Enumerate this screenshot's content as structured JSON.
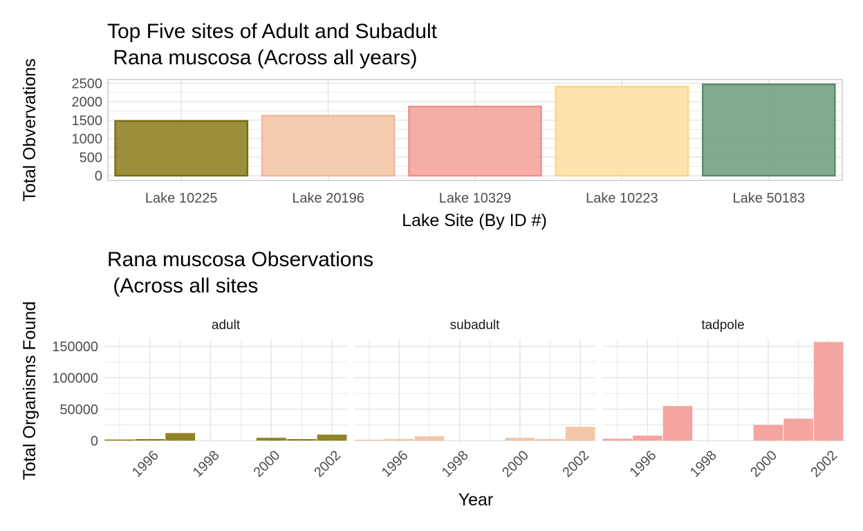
{
  "colors": {
    "olive": "#8b7b1a",
    "olive_border": "#7a6c10",
    "peach": "#f2c4a3",
    "peach_border": "#f0b99a",
    "salmon": "#f4a09a",
    "salmon_border": "#f08f88",
    "yellow": "#fddf9e",
    "yellow_border": "#fcd586",
    "sage": "#6e9a7e",
    "sage_border": "#5d8a6d",
    "grid": "#e3e3e3",
    "panel_border": "#bdbdbd"
  },
  "chart_data": [
    {
      "type": "bar",
      "title_line1": "Top Five sites of Adult and Subadult",
      "title_line2": " Rana muscosa (Across all years)",
      "xlabel": "Lake Site (By ID #)",
      "ylabel": "Total Obvervations",
      "categories": [
        "Lake 10225",
        "Lake 20196",
        "Lake 10329",
        "Lake 10223",
        "Lake 50183"
      ],
      "values": [
        1480,
        1620,
        1870,
        2410,
        2470
      ],
      "bar_colors": [
        "olive",
        "peach",
        "salmon",
        "yellow",
        "sage"
      ],
      "ylim": [
        -130,
        2600
      ],
      "yticks": [
        0,
        500,
        1000,
        1500,
        2000,
        2500
      ],
      "ytick_labels": [
        "0",
        "500",
        "1000",
        "1500",
        "2000",
        "2500"
      ],
      "grid": true,
      "panel_border": true
    },
    {
      "type": "bar",
      "faceted": true,
      "title_line1": "Rana muscosa Observations",
      "title_line2": " (Across all sites",
      "xlabel": "Year",
      "ylabel": "Total Organisms Found",
      "xlim": [
        1994.5,
        2002.5
      ],
      "xticks": [
        1996,
        1998,
        2000,
        2002
      ],
      "xtick_labels": [
        "1996",
        "1998",
        "2000",
        "2002"
      ],
      "ylim": [
        -3000,
        162000
      ],
      "yticks": [
        0,
        50000,
        100000,
        150000
      ],
      "ytick_labels": [
        "0",
        "50000",
        "100000",
        "150000"
      ],
      "grid": true,
      "facets": [
        {
          "label": "adult",
          "color": "olive",
          "x": [
            1995,
            1996,
            1997,
            1998,
            1999,
            2000,
            2001,
            2002
          ],
          "values": [
            1800,
            2500,
            12000,
            0,
            0,
            4500,
            2500,
            9500
          ]
        },
        {
          "label": "subadult",
          "color": "peach",
          "x": [
            1995,
            1996,
            1997,
            1998,
            1999,
            2000,
            2001,
            2002
          ],
          "values": [
            1500,
            2500,
            7000,
            0,
            0,
            4500,
            2500,
            22000
          ]
        },
        {
          "label": "tadpole",
          "color": "salmon",
          "x": [
            1995,
            1996,
            1997,
            1998,
            1999,
            2000,
            2001,
            2002
          ],
          "values": [
            3000,
            8000,
            55000,
            0,
            0,
            25000,
            35000,
            157000
          ]
        }
      ]
    }
  ]
}
